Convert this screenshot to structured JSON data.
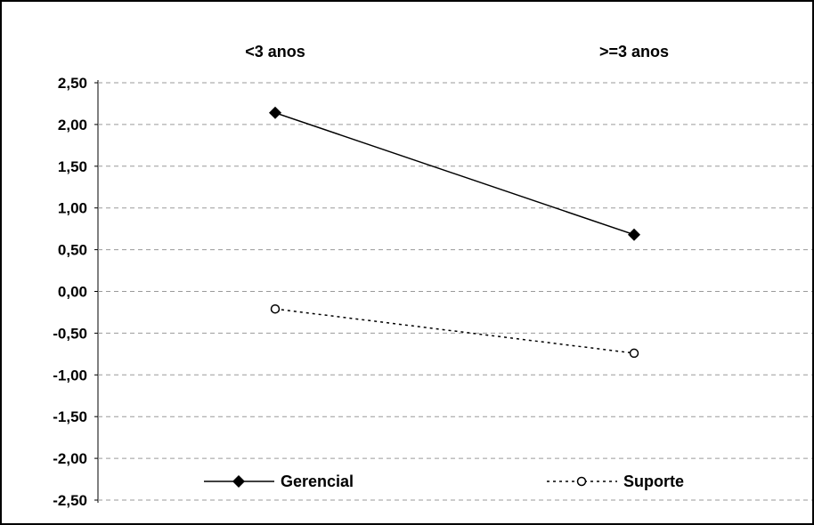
{
  "chart_data": {
    "type": "line",
    "categories": [
      "<3 anos",
      ">=3 anos"
    ],
    "ylim": [
      -2.5,
      2.5
    ],
    "y_ticks": [
      "2,50",
      "2,00",
      "1,50",
      "1,00",
      "0,50",
      "0,00",
      "-0,50",
      "-1,00",
      "-1,50",
      "-2,00",
      "-2,50"
    ],
    "y_tick_values": [
      2.5,
      2.0,
      1.5,
      1.0,
      0.5,
      0.0,
      -0.5,
      -1.0,
      -1.5,
      -2.0,
      -2.5
    ],
    "grid": true,
    "legend_position": "bottom",
    "series": [
      {
        "name": "Gerencial",
        "values": [
          2.14,
          0.68
        ],
        "line_style": "solid",
        "marker": "diamond-filled",
        "color": "#000000"
      },
      {
        "name": "Suporte",
        "values": [
          -0.21,
          -0.74
        ],
        "line_style": "dotted",
        "marker": "circle-open",
        "color": "#000000"
      }
    ]
  }
}
